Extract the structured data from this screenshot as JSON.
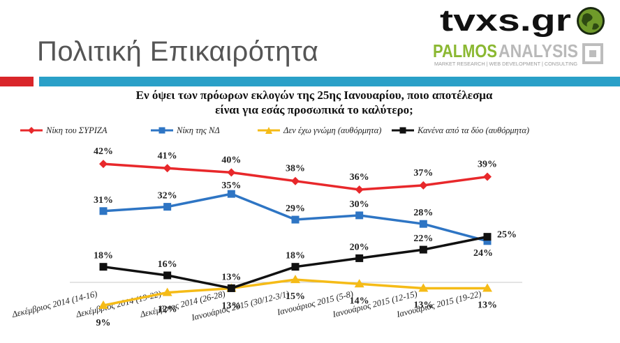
{
  "header": {
    "title": "Πολιτική Επικαιρότητα",
    "logo_tvxs_text": "tvxs.gr",
    "logo_palmos_text_1": "PALMOS",
    "logo_palmos_text_2": "ANALYSIS",
    "logo_palmos_tagline": "MARKET RESEARCH | WEB DEVELOPMENT | CONSULTING"
  },
  "colors": {
    "accent_red": "#d9262a",
    "accent_blue": "#2aa0c8",
    "palmos_green": "#8bb832"
  },
  "chart_data": {
    "type": "line",
    "title": "Εν όψει των πρόωρων εκλογών της 25ης Ιανουαρίου, ποιο αποτέλεσμα είναι για εσάς προσωπικά το καλύτερο;",
    "title_line1": "Εν όψει των πρόωρων εκλογών της 25ης Ιανουαρίου, ποιο αποτέλεσμα",
    "title_line2": "είναι για εσάς προσωπικά το καλύτερο;",
    "categories": [
      "Δεκέμβριος 2014 (14-16)",
      "Δεκέμβριος 2014 (19-22)",
      "Δεκέμβριος 2014 (26-28)",
      "Ιανουάριος 2015 (30/12-3/1)",
      "Ιανουάριος 2015 (5-8)",
      "Ιανουάριος 2015 (12-15)",
      "Ιανουάριος 2015 (19-22)"
    ],
    "series": [
      {
        "name": "Νίκη του ΣΥΡΙΖΑ",
        "color": "#e8282b",
        "marker": "diamond",
        "values": [
          42,
          41,
          40,
          38,
          36,
          37,
          39
        ],
        "labels": [
          "42%",
          "41%",
          "40%",
          "38%",
          "36%",
          "37%",
          "39%"
        ]
      },
      {
        "name": "Νίκη της ΝΔ",
        "color": "#2e75c4",
        "marker": "square",
        "values": [
          31,
          32,
          35,
          29,
          30,
          28,
          24
        ],
        "labels": [
          "31%",
          "32%",
          "35%",
          "29%",
          "30%",
          "28%",
          "24%"
        ]
      },
      {
        "name": "Δεν έχω γνώμη (αυθόρμητα)",
        "color": "#f5bb17",
        "marker": "triangle",
        "values": [
          9,
          12,
          13,
          15,
          14,
          13,
          13
        ],
        "labels": [
          "9%",
          "12%",
          "13%",
          "15%",
          "14%",
          "13%",
          "13%"
        ]
      },
      {
        "name": "Κανένα από τα δύο (αυθόρμητα)",
        "color": "#111111",
        "marker": "square",
        "values": [
          18,
          16,
          13,
          18,
          20,
          22,
          25
        ],
        "labels": [
          "18%",
          "16%",
          "13%",
          "18%",
          "20%",
          "22%",
          "25%"
        ]
      }
    ],
    "ylim": [
      5,
      45
    ],
    "legend": "top",
    "grid": false
  }
}
